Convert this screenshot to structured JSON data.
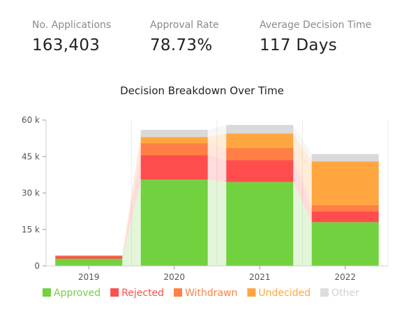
{
  "kpis": [
    {
      "label": "No. Applications",
      "value": "163,403"
    },
    {
      "label": "Approval Rate",
      "value": "78.73%"
    },
    {
      "label": "Average Decision Time",
      "value": "117 Days"
    }
  ],
  "chart_data": {
    "type": "bar",
    "stacked": true,
    "title": "Decision Breakdown Over Time",
    "categories": [
      "2019",
      "2020",
      "2021",
      "2022"
    ],
    "series": [
      {
        "name": "Approved",
        "color": "#72d13f",
        "values": [
          3000,
          35500,
          34500,
          18000
        ]
      },
      {
        "name": "Rejected",
        "color": "#ff4d4d",
        "values": [
          1000,
          10000,
          9000,
          4500
        ]
      },
      {
        "name": "Withdrawn",
        "color": "#ff7f45",
        "values": [
          200,
          5000,
          5000,
          2500
        ]
      },
      {
        "name": "Undecided",
        "color": "#ffa640",
        "values": [
          100,
          2500,
          6000,
          18000
        ]
      },
      {
        "name": "Other",
        "color": "#d9d9d9",
        "values": [
          100,
          3000,
          3500,
          3000
        ]
      }
    ],
    "ylim": [
      0,
      60000
    ],
    "y_ticks": [
      0,
      15000,
      30000,
      45000,
      60000
    ],
    "y_tick_labels": [
      "0",
      "15 k",
      "30 k",
      "45 k",
      "60 k"
    ],
    "grid": "vertical",
    "legend_position": "bottom",
    "legend_hidden_series": [
      "Other"
    ]
  }
}
